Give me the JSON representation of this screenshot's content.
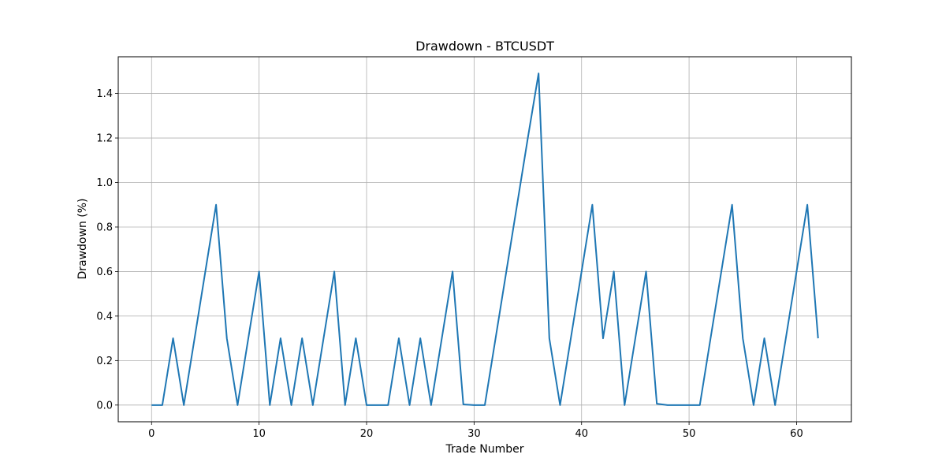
{
  "chart_data": {
    "type": "line",
    "title": "Drawdown - BTCUSDT",
    "xlabel": "Trade Number",
    "ylabel": "Drawdown (%)",
    "xlim": [
      -3.1,
      65.1
    ],
    "ylim": [
      -0.075,
      1.565
    ],
    "xticks": [
      0,
      10,
      20,
      30,
      40,
      50,
      60
    ],
    "yticks": [
      0.0,
      0.2,
      0.4,
      0.6,
      0.8,
      1.0,
      1.2,
      1.4
    ],
    "ytick_labels": [
      "0.0",
      "0.2",
      "0.4",
      "0.6",
      "0.8",
      "1.0",
      "1.2",
      "1.4"
    ],
    "grid": true,
    "series": [
      {
        "color": "#1f77b4",
        "x": [
          0,
          1,
          2,
          3,
          4,
          5,
          6,
          7,
          8,
          9,
          10,
          11,
          12,
          13,
          14,
          15,
          16,
          17,
          18,
          19,
          20,
          21,
          22,
          23,
          24,
          25,
          26,
          27,
          28,
          29,
          30,
          31,
          32,
          33,
          34,
          35,
          36,
          37,
          38,
          39,
          40,
          41,
          42,
          43,
          44,
          45,
          46,
          47,
          48,
          49,
          50,
          51,
          52,
          53,
          54,
          55,
          56,
          57,
          58,
          59,
          60,
          61,
          62
        ],
        "values": [
          0,
          0,
          0.3,
          0,
          0.3,
          0.6,
          0.9,
          0.3,
          0,
          0.3,
          0.6,
          0,
          0.3,
          0,
          0.3,
          0,
          0.3,
          0.6,
          0,
          0.3,
          0,
          0,
          0,
          0.3,
          0,
          0.3,
          0,
          0.3,
          0.6,
          0.003,
          0,
          0,
          0.3,
          0.6,
          0.9,
          1.2,
          1.49,
          0.3,
          0,
          0.3,
          0.6,
          0.9,
          0.3,
          0.6,
          0,
          0.3,
          0.6,
          0.006,
          0,
          0,
          0,
          0,
          0.3,
          0.6,
          0.9,
          0.3,
          0,
          0.3,
          0,
          0.3,
          0.6,
          0.9,
          0.3
        ]
      }
    ]
  }
}
